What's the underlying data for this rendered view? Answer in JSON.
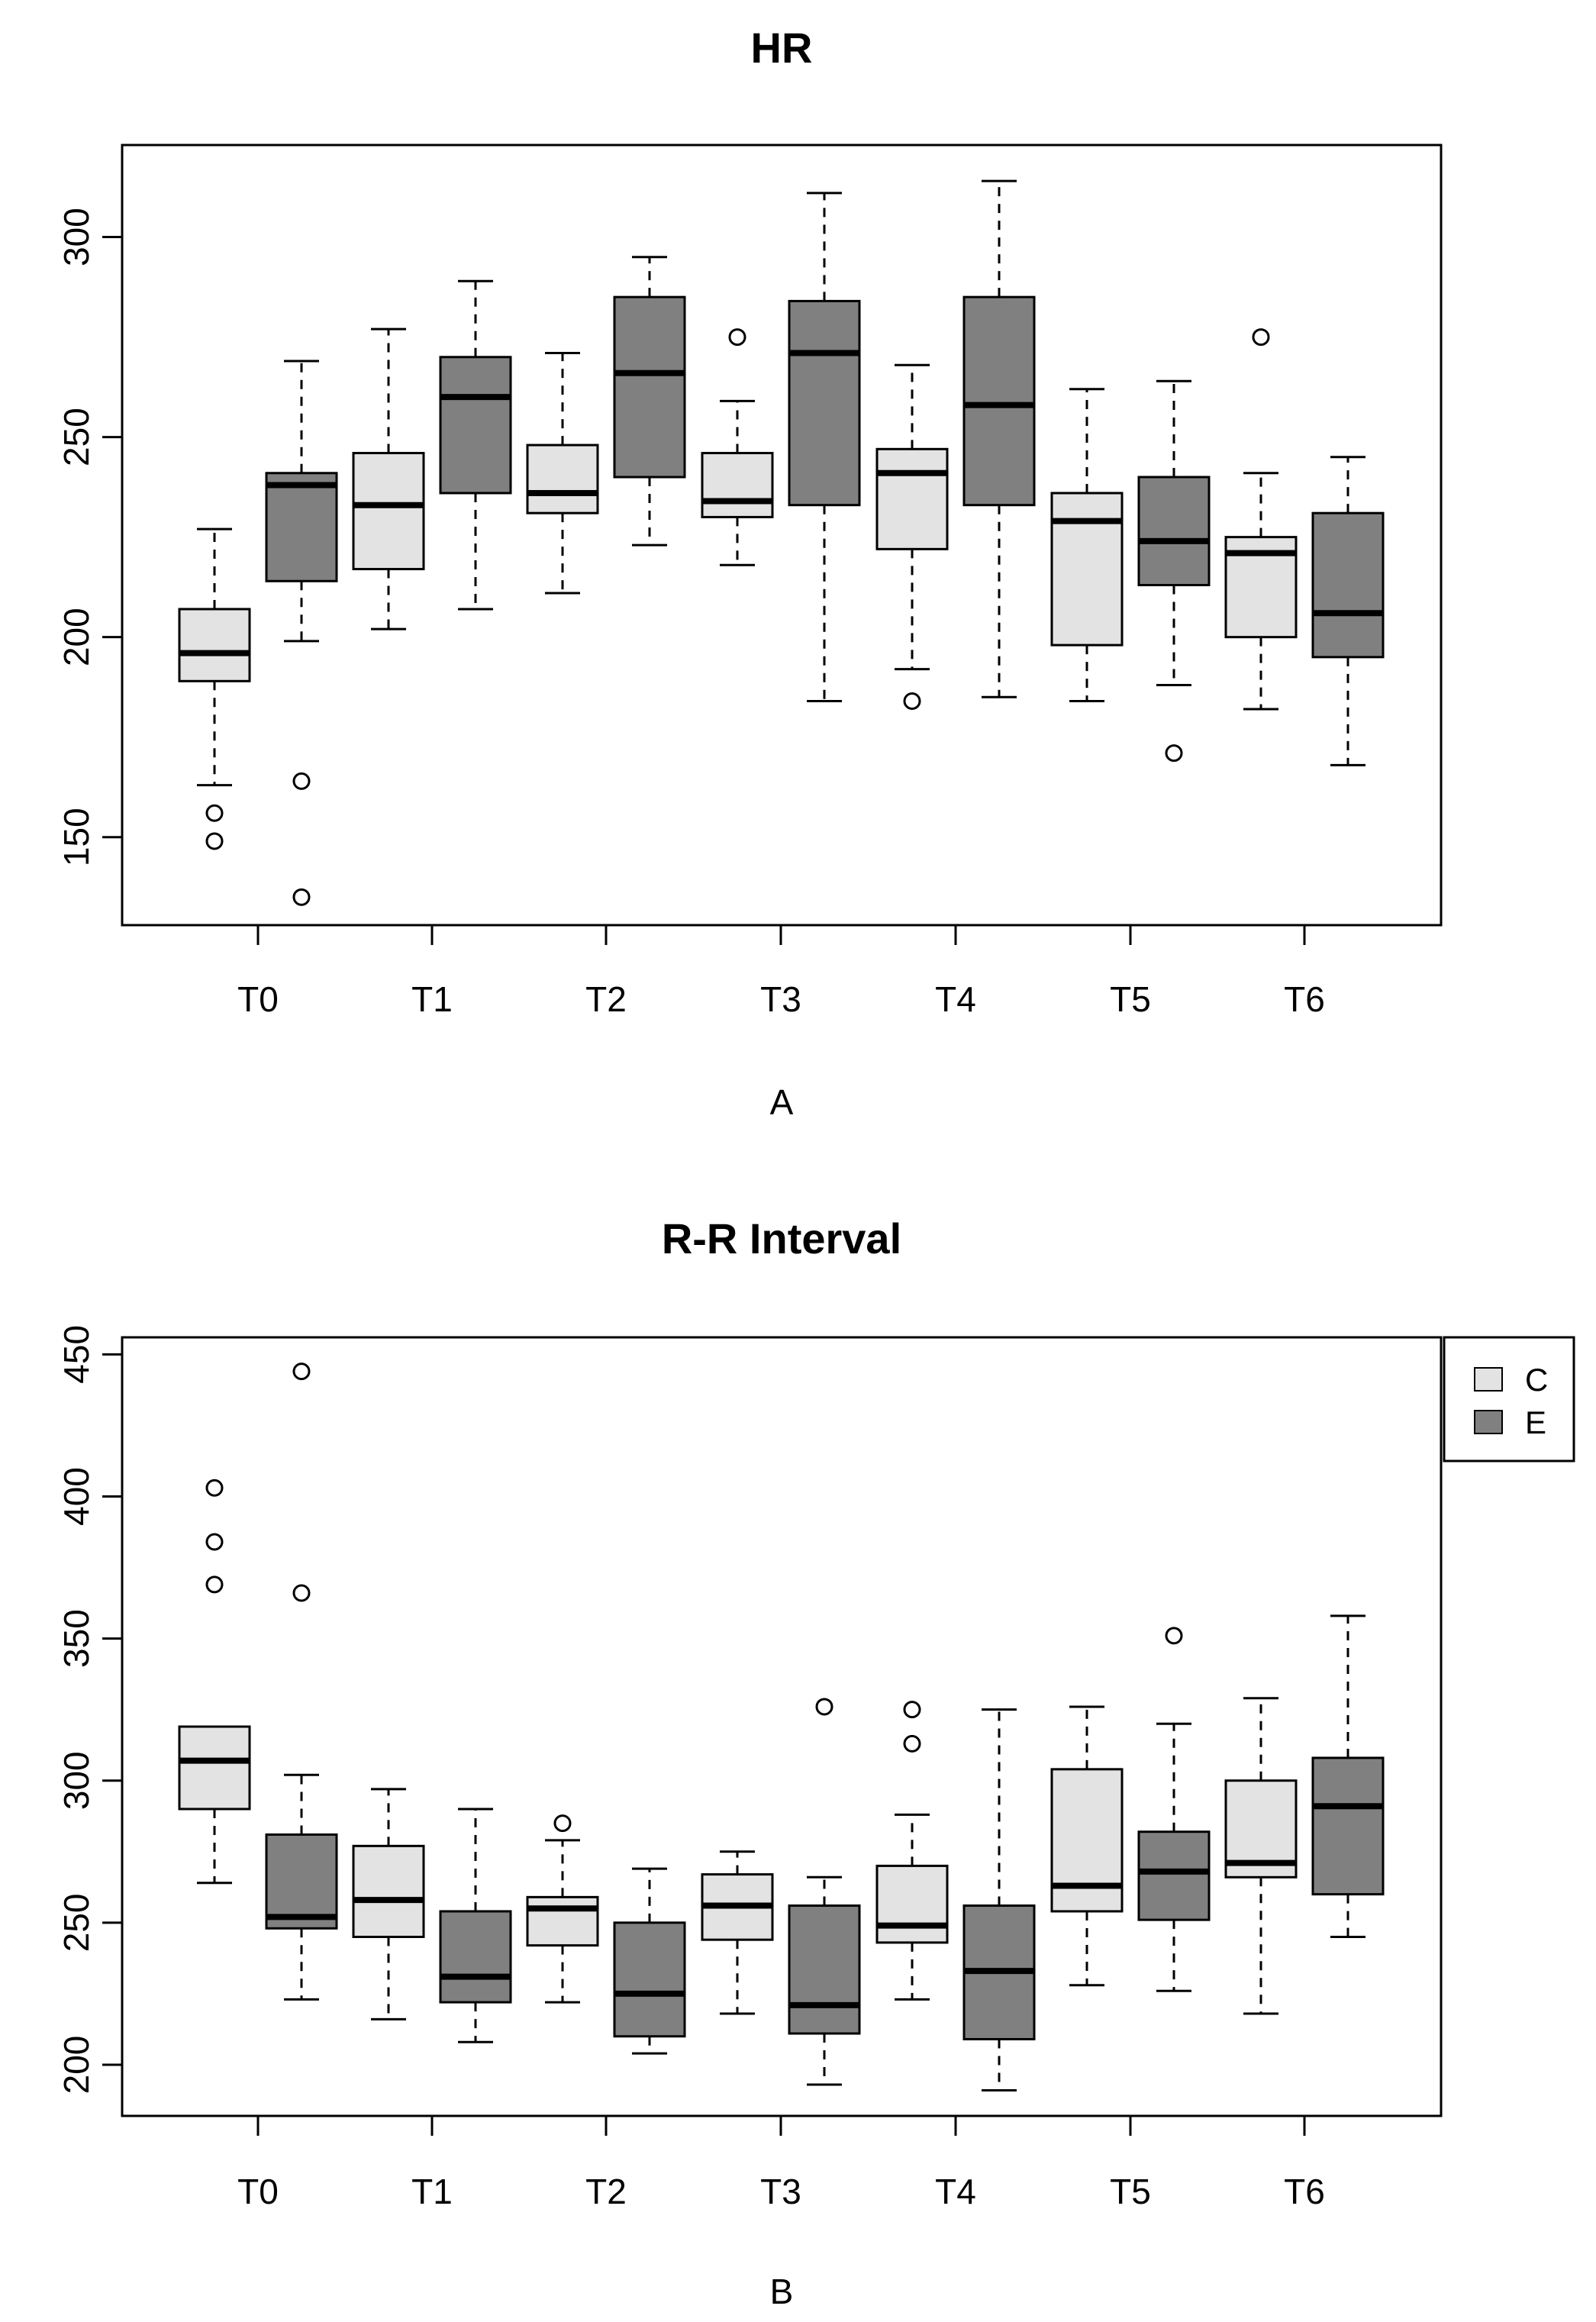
{
  "chart_data": [
    {
      "panel_label": "A",
      "type": "boxplot",
      "title": "HR",
      "xlabel": "",
      "ylabel": "",
      "categories": [
        "T0",
        "T1",
        "T2",
        "T3",
        "T4",
        "T5",
        "T6"
      ],
      "ylim": [
        128,
        323
      ],
      "yticks": [
        150,
        200,
        250,
        300
      ],
      "colors": {
        "C": "#e3e3e3",
        "E": "#808080"
      },
      "series": [
        {
          "name": "C",
          "boxes": [
            {
              "whisker_low": 163,
              "q1": 189,
              "median": 196,
              "q3": 207,
              "whisker_high": 227,
              "outliers": [
                149,
                156
              ]
            },
            {
              "whisker_low": 202,
              "q1": 217,
              "median": 233,
              "q3": 246,
              "whisker_high": 277,
              "outliers": []
            },
            {
              "whisker_low": 211,
              "q1": 231,
              "median": 236,
              "q3": 248,
              "whisker_high": 271,
              "outliers": []
            },
            {
              "whisker_low": 218,
              "q1": 230,
              "median": 234,
              "q3": 246,
              "whisker_high": 259,
              "outliers": [
                275
              ]
            },
            {
              "whisker_low": 192,
              "q1": 222,
              "median": 241,
              "q3": 247,
              "whisker_high": 268,
              "outliers": [
                184
              ]
            },
            {
              "whisker_low": 184,
              "q1": 198,
              "median": 229,
              "q3": 236,
              "whisker_high": 262,
              "outliers": []
            },
            {
              "whisker_low": 182,
              "q1": 200,
              "median": 221,
              "q3": 225,
              "whisker_high": 241,
              "outliers": [
                275
              ]
            }
          ]
        },
        {
          "name": "E",
          "boxes": [
            {
              "whisker_low": 199,
              "q1": 214,
              "median": 238,
              "q3": 241,
              "whisker_high": 269,
              "outliers": [
                135,
                164
              ]
            },
            {
              "whisker_low": 207,
              "q1": 236,
              "median": 260,
              "q3": 270,
              "whisker_high": 289,
              "outliers": []
            },
            {
              "whisker_low": 223,
              "q1": 240,
              "median": 266,
              "q3": 285,
              "whisker_high": 295,
              "outliers": []
            },
            {
              "whisker_low": 184,
              "q1": 233,
              "median": 271,
              "q3": 284,
              "whisker_high": 311,
              "outliers": []
            },
            {
              "whisker_low": 185,
              "q1": 233,
              "median": 258,
              "q3": 285,
              "whisker_high": 314,
              "outliers": []
            },
            {
              "whisker_low": 188,
              "q1": 213,
              "median": 224,
              "q3": 240,
              "whisker_high": 264,
              "outliers": [
                171
              ]
            },
            {
              "whisker_low": 168,
              "q1": 195,
              "median": 206,
              "q3": 231,
              "whisker_high": 245,
              "outliers": []
            }
          ]
        }
      ]
    },
    {
      "panel_label": "B",
      "type": "boxplot",
      "title": "R-R Interval",
      "xlabel": "",
      "ylabel": "",
      "categories": [
        "T0",
        "T1",
        "T2",
        "T3",
        "T4",
        "T5",
        "T6"
      ],
      "ylim": [
        182,
        456
      ],
      "yticks": [
        200,
        250,
        300,
        350,
        400,
        450
      ],
      "colors": {
        "C": "#e3e3e3",
        "E": "#808080"
      },
      "legend": {
        "entries": [
          "C",
          "E"
        ],
        "position": "top-right"
      },
      "series": [
        {
          "name": "C",
          "boxes": [
            {
              "whisker_low": 264,
              "q1": 290,
              "median": 307,
              "q3": 319,
              "whisker_high": 319,
              "outliers": [
                369,
                384,
                403
              ]
            },
            {
              "whisker_low": 216,
              "q1": 245,
              "median": 258,
              "q3": 277,
              "whisker_high": 297,
              "outliers": []
            },
            {
              "whisker_low": 222,
              "q1": 242,
              "median": 255,
              "q3": 259,
              "whisker_high": 279,
              "outliers": [
                285
              ]
            },
            {
              "whisker_low": 218,
              "q1": 244,
              "median": 256,
              "q3": 267,
              "whisker_high": 275,
              "outliers": []
            },
            {
              "whisker_low": 223,
              "q1": 243,
              "median": 249,
              "q3": 270,
              "whisker_high": 288,
              "outliers": [
                313,
                325
              ]
            },
            {
              "whisker_low": 228,
              "q1": 254,
              "median": 263,
              "q3": 304,
              "whisker_high": 326,
              "outliers": []
            },
            {
              "whisker_low": 218,
              "q1": 266,
              "median": 271,
              "q3": 300,
              "whisker_high": 329,
              "outliers": []
            }
          ]
        },
        {
          "name": "E",
          "boxes": [
            {
              "whisker_low": 223,
              "q1": 248,
              "median": 252,
              "q3": 281,
              "whisker_high": 302,
              "outliers": [
                366,
                444
              ]
            },
            {
              "whisker_low": 208,
              "q1": 222,
              "median": 231,
              "q3": 254,
              "whisker_high": 290,
              "outliers": []
            },
            {
              "whisker_low": 204,
              "q1": 210,
              "median": 225,
              "q3": 250,
              "whisker_high": 269,
              "outliers": []
            },
            {
              "whisker_low": 193,
              "q1": 211,
              "median": 221,
              "q3": 256,
              "whisker_high": 266,
              "outliers": [
                326
              ]
            },
            {
              "whisker_low": 191,
              "q1": 209,
              "median": 233,
              "q3": 256,
              "whisker_high": 325,
              "outliers": []
            },
            {
              "whisker_low": 226,
              "q1": 251,
              "median": 268,
              "q3": 282,
              "whisker_high": 320,
              "outliers": [
                351
              ]
            },
            {
              "whisker_low": 245,
              "q1": 260,
              "median": 291,
              "q3": 308,
              "whisker_high": 358,
              "outliers": []
            }
          ]
        }
      ]
    }
  ]
}
